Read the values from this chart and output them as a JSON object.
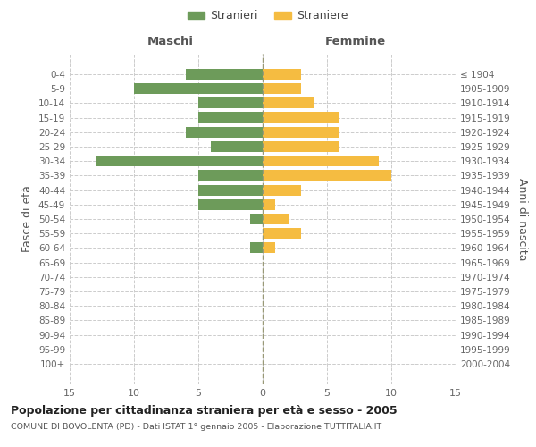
{
  "age_groups": [
    "0-4",
    "5-9",
    "10-14",
    "15-19",
    "20-24",
    "25-29",
    "30-34",
    "35-39",
    "40-44",
    "45-49",
    "50-54",
    "55-59",
    "60-64",
    "65-69",
    "70-74",
    "75-79",
    "80-84",
    "85-89",
    "90-94",
    "95-99",
    "100+"
  ],
  "birth_years": [
    "2000-2004",
    "1995-1999",
    "1990-1994",
    "1985-1989",
    "1980-1984",
    "1975-1979",
    "1970-1974",
    "1965-1969",
    "1960-1964",
    "1955-1959",
    "1950-1954",
    "1945-1949",
    "1940-1944",
    "1935-1939",
    "1930-1934",
    "1925-1929",
    "1920-1924",
    "1915-1919",
    "1910-1914",
    "1905-1909",
    "≤ 1904"
  ],
  "males": [
    6,
    10,
    5,
    5,
    6,
    4,
    13,
    5,
    5,
    5,
    1,
    0,
    1,
    0,
    0,
    0,
    0,
    0,
    0,
    0,
    0
  ],
  "females": [
    3,
    3,
    4,
    6,
    6,
    6,
    9,
    10,
    3,
    1,
    2,
    3,
    1,
    0,
    0,
    0,
    0,
    0,
    0,
    0,
    0
  ],
  "male_color": "#6d9b5a",
  "female_color": "#f5bc41",
  "male_label": "Stranieri",
  "female_label": "Straniere",
  "title": "Popolazione per cittadinanza straniera per età e sesso - 2005",
  "subtitle": "COMUNE DI BOVOLENTA (PD) - Dati ISTAT 1° gennaio 2005 - Elaborazione TUTTITALIA.IT",
  "xlabel_left": "Maschi",
  "xlabel_right": "Femmine",
  "ylabel_left": "Fasce di età",
  "ylabel_right": "Anni di nascita",
  "xlim": 15,
  "background_color": "#ffffff",
  "grid_color": "#cccccc",
  "bar_height": 0.75
}
